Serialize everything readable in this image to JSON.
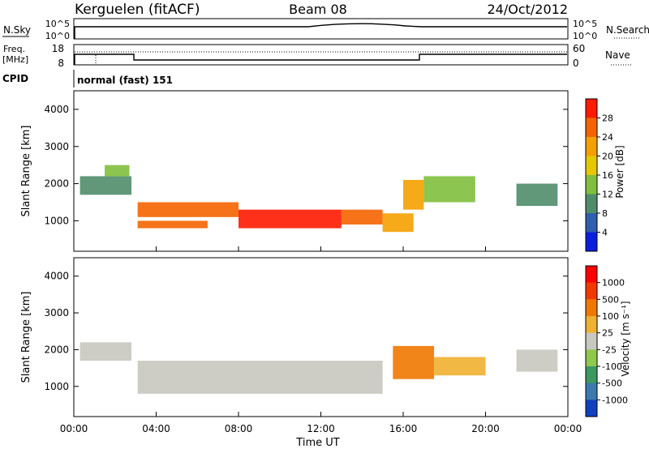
{
  "header": {
    "station": "Kerguelen (fitACF)",
    "beam": "Beam 08",
    "date": "24/Oct/2012"
  },
  "noise_panel": {
    "left_label": "N.Sky",
    "right_label": "N.Search",
    "left_ticks": [
      "10^5",
      "10^0"
    ],
    "right_ticks": [
      "10^5",
      "10^0"
    ]
  },
  "freq_panel": {
    "left_label_line1": "Freq.",
    "left_label_line2": "[MHz]",
    "right_label": "Nave",
    "left_ticks": [
      "18",
      "8"
    ],
    "right_ticks": [
      "60",
      "0"
    ]
  },
  "cpid": {
    "label": "CPID",
    "value": "normal (fast) 151"
  },
  "chart_data": [
    {
      "type": "heatmap",
      "name": "Power",
      "ylabel": "Slant Range [km]",
      "ylim": [
        180,
        4500
      ],
      "y_ticks": [
        "1000",
        "2000",
        "3000",
        "4000"
      ],
      "colorbar": {
        "label": "Power [dB]",
        "ticks": [
          "4",
          "8",
          "12",
          "16",
          "20",
          "24",
          "28"
        ],
        "colors": [
          "#0a1ee0",
          "#2e5fb0",
          "#4f8d6a",
          "#7fbf3c",
          "#e6c800",
          "#f5a000",
          "#f56400",
          "#ff1a00"
        ]
      },
      "regions": [
        {
          "t": [
            0.3,
            2.8
          ],
          "r": [
            1700,
            2200
          ],
          "level": 2
        },
        {
          "t": [
            1.5,
            2.7
          ],
          "r": [
            2200,
            2500
          ],
          "level": 3
        },
        {
          "t": [
            3.1,
            6.5
          ],
          "r": [
            800,
            1000
          ],
          "level": 6
        },
        {
          "t": [
            3.1,
            8.0
          ],
          "r": [
            1100,
            1500
          ],
          "level": 6
        },
        {
          "t": [
            8.0,
            13.0
          ],
          "r": [
            800,
            1300
          ],
          "level": 7
        },
        {
          "t": [
            13.0,
            15.0
          ],
          "r": [
            900,
            1300
          ],
          "level": 6
        },
        {
          "t": [
            15.0,
            16.5
          ],
          "r": [
            700,
            1200
          ],
          "level": 5
        },
        {
          "t": [
            16.0,
            17.0
          ],
          "r": [
            1300,
            2100
          ],
          "level": 5
        },
        {
          "t": [
            17.0,
            19.5
          ],
          "r": [
            1500,
            2200
          ],
          "level": 3
        },
        {
          "t": [
            21.5,
            23.5
          ],
          "r": [
            1400,
            2000
          ],
          "level": 2
        }
      ]
    },
    {
      "type": "heatmap",
      "name": "Velocity",
      "ylabel": "Slant Range [km]",
      "xlabel": "Time UT",
      "xlim": [
        0,
        24
      ],
      "ylim": [
        180,
        4500
      ],
      "y_ticks": [
        "1000",
        "2000",
        "3000",
        "4000"
      ],
      "x_ticks": [
        "00:00",
        "04:00",
        "08:00",
        "12:00",
        "16:00",
        "20:00",
        "00:00"
      ],
      "colorbar": {
        "label": "Velocity [m s⁻¹]",
        "ticks": [
          "1000",
          "500",
          "100",
          "25",
          "-25",
          "-100",
          "-500",
          "-1000"
        ],
        "colors": [
          "#1040c0",
          "#3a7ab0",
          "#3a9a60",
          "#8fc84a",
          "#c8c8c0",
          "#f0b030",
          "#f07800",
          "#f03a00",
          "#ff0000"
        ]
      },
      "regions": [
        {
          "t": [
            0.3,
            2.8
          ],
          "r": [
            1700,
            2200
          ],
          "level": 4
        },
        {
          "t": [
            3.1,
            15.0
          ],
          "r": [
            800,
            1700
          ],
          "level": 4
        },
        {
          "t": [
            15.5,
            17.5
          ],
          "r": [
            1200,
            2100
          ],
          "level": 6
        },
        {
          "t": [
            17.5,
            20.0
          ],
          "r": [
            1300,
            1800
          ],
          "level": 5
        },
        {
          "t": [
            21.5,
            23.5
          ],
          "r": [
            1400,
            2000
          ],
          "level": 4
        }
      ]
    }
  ]
}
